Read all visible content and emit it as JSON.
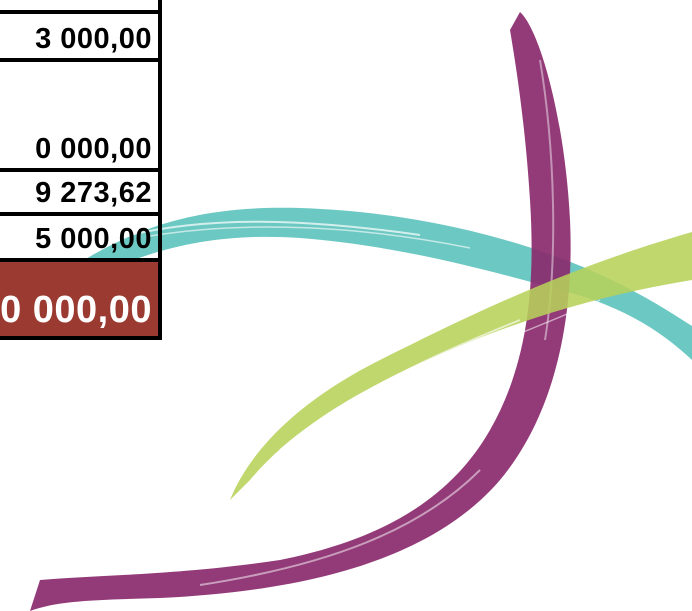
{
  "table": {
    "rows": [
      {
        "value": ""
      },
      {
        "value": "3 000,00"
      },
      {
        "value": ""
      },
      {
        "value": "0 000,00"
      },
      {
        "value": "9 273,62"
      },
      {
        "value": "5 000,00"
      }
    ],
    "total": {
      "value": "0 000,00"
    }
  },
  "colors": {
    "purple": "#8a2a6c",
    "teal": "#5cc2bb",
    "green": "#b7d15a",
    "total_bg": "#9a3a31"
  },
  "logo": {
    "icon": "brush-stroke-cross-logo"
  }
}
